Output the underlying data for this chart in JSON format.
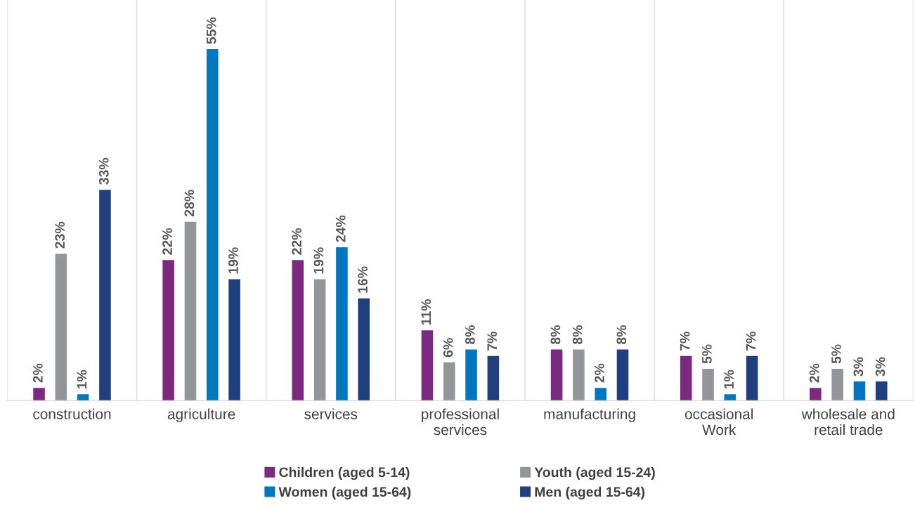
{
  "chart_data": {
    "type": "bar",
    "categories": [
      "construction",
      "agriculture",
      "services",
      "professional\nservices",
      "manufacturing",
      "occasional\nWork",
      "wholesale and\nretail trade"
    ],
    "series": [
      {
        "name": "Children (aged 5-14)",
        "color": "#7b2a7f",
        "values": [
          2,
          22,
          22,
          11,
          8,
          7,
          2
        ],
        "value_labels": [
          "2%",
          "22%",
          "22%",
          "11%",
          "8%",
          "7%",
          "2%"
        ]
      },
      {
        "name": "Youth (aged 15-24)",
        "color": "#939598",
        "values": [
          23,
          28,
          19,
          6,
          8,
          5,
          5
        ],
        "value_labels": [
          "23%",
          "28%",
          "19%",
          "6%",
          "8%",
          "5%",
          "5%"
        ]
      },
      {
        "name": "Women (aged 15-64)",
        "color": "#0077c0",
        "values": [
          1,
          55,
          24,
          8,
          2,
          1,
          3
        ],
        "value_labels": [
          "1%",
          "55%",
          "24%",
          "8%",
          "2%",
          "1%",
          "3%"
        ]
      },
      {
        "name": "Men (aged 15-64)",
        "color": "#1f3f7f",
        "values": [
          33,
          19,
          16,
          7,
          8,
          7,
          3
        ],
        "value_labels": [
          "33%",
          "19%",
          "16%",
          "7%",
          "8%",
          "7%",
          "3%"
        ]
      }
    ],
    "grid": "x",
    "legend": "bottom"
  }
}
